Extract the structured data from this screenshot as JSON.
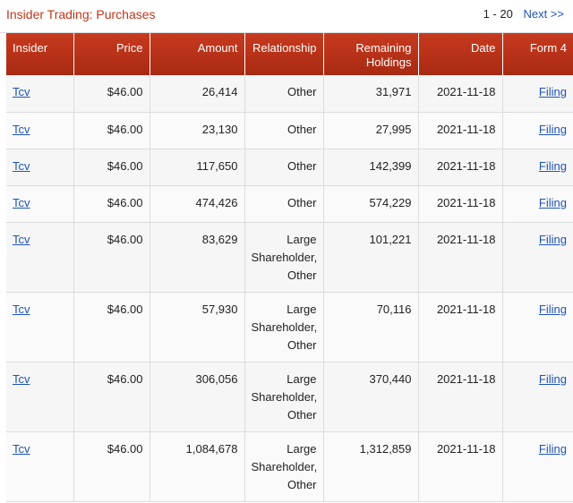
{
  "header": {
    "title": "Insider Trading: Purchases",
    "range": "1 - 20",
    "next_label": "Next >>"
  },
  "table": {
    "columns": [
      "Insider",
      "Price",
      "Amount",
      "Relationship",
      "Remaining Holdings",
      "Date",
      "Form 4"
    ],
    "rows": [
      {
        "insider": "Tcv",
        "price": "$46.00",
        "amount": "26,414",
        "relationship": "Other",
        "remaining": "31,971",
        "date": "2021-11-18",
        "form": "Filing"
      },
      {
        "insider": "Tcv",
        "price": "$46.00",
        "amount": "23,130",
        "relationship": "Other",
        "remaining": "27,995",
        "date": "2021-11-18",
        "form": "Filing"
      },
      {
        "insider": "Tcv",
        "price": "$46.00",
        "amount": "117,650",
        "relationship": "Other",
        "remaining": "142,399",
        "date": "2021-11-18",
        "form": "Filing"
      },
      {
        "insider": "Tcv",
        "price": "$46.00",
        "amount": "474,426",
        "relationship": "Other",
        "remaining": "574,229",
        "date": "2021-11-18",
        "form": "Filing"
      },
      {
        "insider": "Tcv",
        "price": "$46.00",
        "amount": "83,629",
        "relationship": "Large Shareholder, Other",
        "remaining": "101,221",
        "date": "2021-11-18",
        "form": "Filing"
      },
      {
        "insider": "Tcv",
        "price": "$46.00",
        "amount": "57,930",
        "relationship": "Large Shareholder, Other",
        "remaining": "70,116",
        "date": "2021-11-18",
        "form": "Filing"
      },
      {
        "insider": "Tcv",
        "price": "$46.00",
        "amount": "306,056",
        "relationship": "Large Shareholder, Other",
        "remaining": "370,440",
        "date": "2021-11-18",
        "form": "Filing"
      },
      {
        "insider": "Tcv",
        "price": "$46.00",
        "amount": "1,084,678",
        "relationship": "Large Shareholder, Other",
        "remaining": "1,312,859",
        "date": "2021-11-18",
        "form": "Filing"
      }
    ]
  },
  "colors": {
    "header_bg": "#b8321a",
    "title": "#c0351a",
    "link": "#1f53b8"
  }
}
